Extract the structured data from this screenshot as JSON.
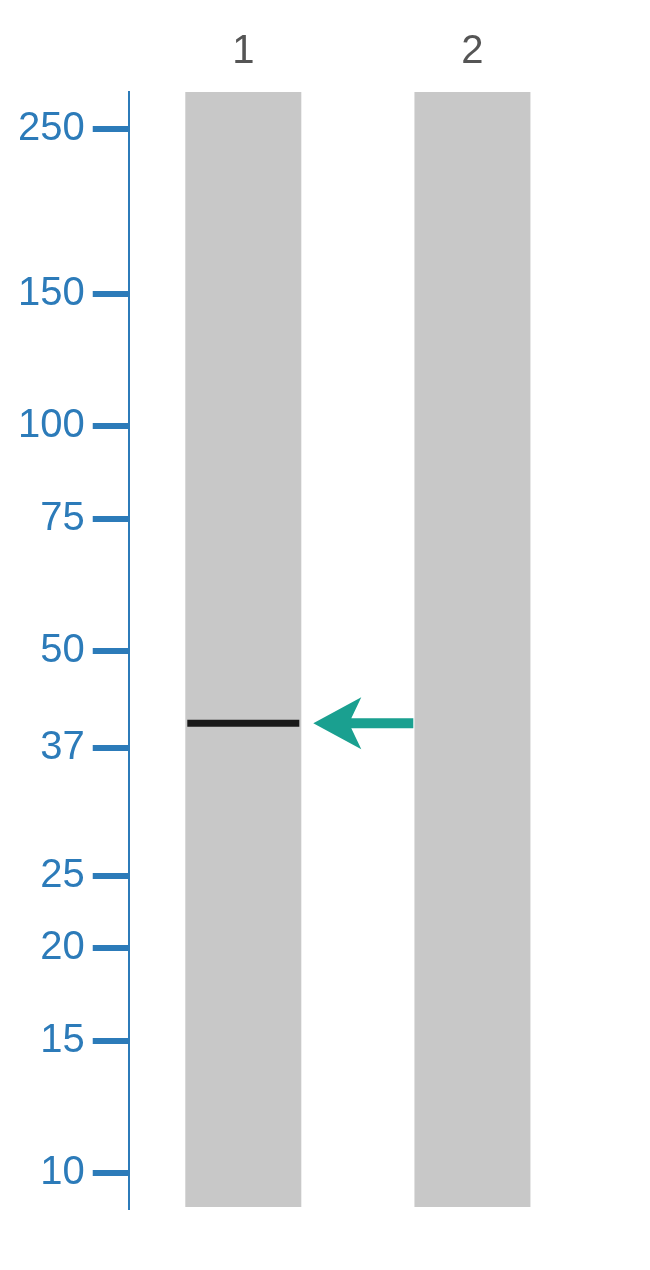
{
  "chart_data": {
    "type": "blot",
    "categories": [
      "1",
      "2"
    ],
    "values": [
      40,
      null
    ],
    "color": "#1a1a1a",
    "log": "y",
    "ylim": [
      9,
      280
    ],
    "yticks": [
      250,
      150,
      100,
      75,
      50,
      37,
      25,
      20,
      15,
      10
    ],
    "grid": false
  }
}
